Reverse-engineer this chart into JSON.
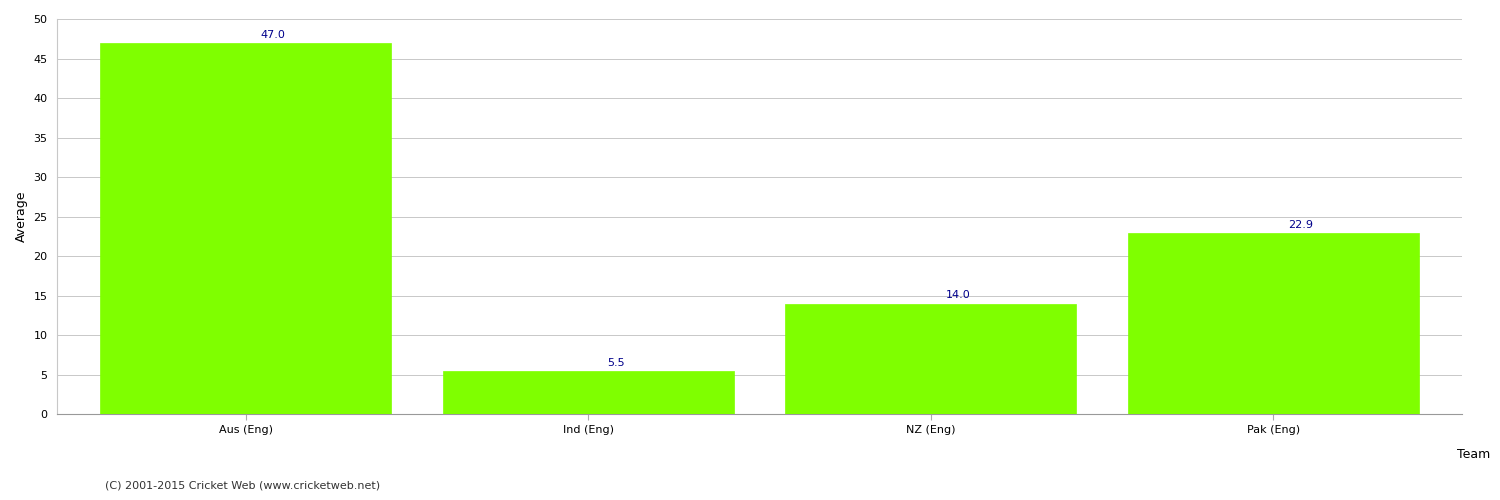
{
  "categories": [
    "Aus (Eng)",
    "Ind (Eng)",
    "NZ (Eng)",
    "Pak (Eng)"
  ],
  "values": [
    47.0,
    5.5,
    14.0,
    22.9
  ],
  "bar_color": "#7fff00",
  "bar_edge_color": "#7fff00",
  "value_labels": [
    "47.0",
    "5.5",
    "14.0",
    "22.9"
  ],
  "ylabel": "Average",
  "ylim": [
    0,
    50
  ],
  "yticks": [
    0,
    5,
    10,
    15,
    20,
    25,
    30,
    35,
    40,
    45,
    50
  ],
  "annotation_color": "#00008b",
  "annotation_fontsize": 8,
  "axis_label_fontsize": 9,
  "tick_fontsize": 8,
  "footer_text": "(C) 2001-2015 Cricket Web (www.cricketweb.net)",
  "footer_fontsize": 8,
  "footer_color": "#333333",
  "background_color": "#ffffff",
  "grid_color": "#c8c8c8",
  "bar_width": 0.85
}
